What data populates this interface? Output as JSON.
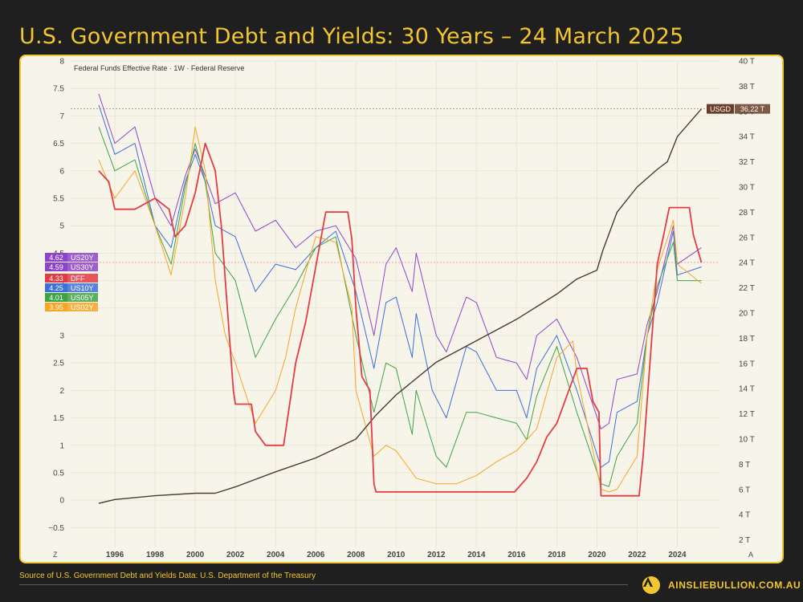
{
  "page": {
    "title": "U.S. Government Debt and Yields: 30 Years – 24 March 2025",
    "source": "Source of U.S. Government Debt and Yields Data: U.S. Department of the Treasury",
    "brand": "AINSLIEBULLION.COM.AU",
    "brand_color": "#f2c62f",
    "logo_icon": "a-logo-icon"
  },
  "chart_data": {
    "type": "line",
    "title": "Federal Funds Effective Rate · 1W · Federal Reserve",
    "x_ticks": [
      "1996",
      "1998",
      "2000",
      "2002",
      "2004",
      "2006",
      "2008",
      "2010",
      "2012",
      "2014",
      "2016",
      "2018",
      "2020",
      "2022",
      "2024"
    ],
    "x_tick_years": [
      1996,
      1998,
      2000,
      2002,
      2004,
      2006,
      2008,
      2010,
      2012,
      2014,
      2016,
      2018,
      2020,
      2022,
      2024
    ],
    "xlim": [
      1993.8,
      2026.1
    ],
    "x_corner_left": "Z",
    "x_corner_right": "A",
    "left_axis": {
      "ticks": [
        "8",
        "7.5",
        "7",
        "6.5",
        "6",
        "5.5",
        "5",
        "4.5",
        "4",
        "3.5",
        "3",
        "2.5",
        "2",
        "1.5",
        "1",
        "0.5",
        "0",
        "−0.5"
      ],
      "values": [
        8,
        7.5,
        7,
        6.5,
        6,
        5.5,
        5,
        4.5,
        4,
        3.5,
        3,
        2.5,
        2,
        1.5,
        1,
        0.5,
        0,
        -0.5
      ],
      "ylim": [
        -0.86,
        8.0
      ]
    },
    "right_axis": {
      "ticks": [
        "40 T",
        "38 T",
        "36 T",
        "34 T",
        "32 T",
        "30 T",
        "28 T",
        "26 T",
        "24 T",
        "22 T",
        "20 T",
        "18 T",
        "16 T",
        "14 T",
        "12 T",
        "10 T",
        "8 T",
        "6 T",
        "4 T",
        "2 T"
      ],
      "values": [
        40,
        38,
        36,
        34,
        32,
        30,
        28,
        26,
        24,
        22,
        20,
        18,
        16,
        14,
        12,
        10,
        8,
        6,
        4,
        2
      ],
      "ylim": [
        1.4,
        40.0
      ]
    },
    "legend_badges": [
      {
        "value": "4.62",
        "name": "US20Y",
        "color": "#8e44c9"
      },
      {
        "value": "4.59",
        "name": "US30Y",
        "color": "#8e44c9"
      },
      {
        "value": "4.33",
        "name": "DFF",
        "color": "#e23b44"
      },
      {
        "value": "4.25",
        "name": "US10Y",
        "color": "#3b6fd9"
      },
      {
        "value": "4.01",
        "name": "US05Y",
        "color": "#3da346"
      },
      {
        "value": "3.95",
        "name": "US02Y",
        "color": "#f5a623"
      }
    ],
    "debt_label": {
      "name": "USGD",
      "value": "36.22 T",
      "color": "#6a3d2a"
    },
    "series": [
      {
        "name": "USGD",
        "axis": "right",
        "color": "#4a3a33",
        "points": [
          [
            1995.2,
            4.9
          ],
          [
            1996,
            5.2
          ],
          [
            1998,
            5.5
          ],
          [
            2000,
            5.7
          ],
          [
            2001,
            5.7
          ],
          [
            2002,
            6.2
          ],
          [
            2004,
            7.4
          ],
          [
            2006,
            8.5
          ],
          [
            2008,
            10.0
          ],
          [
            2009,
            11.9
          ],
          [
            2010,
            13.5
          ],
          [
            2012,
            16.1
          ],
          [
            2014,
            17.8
          ],
          [
            2016,
            19.5
          ],
          [
            2018,
            21.5
          ],
          [
            2019,
            22.7
          ],
          [
            2020,
            23.4
          ],
          [
            2020.3,
            25.0
          ],
          [
            2021,
            28.0
          ],
          [
            2022,
            30.0
          ],
          [
            2023,
            31.4
          ],
          [
            2023.5,
            32.0
          ],
          [
            2024,
            34.0
          ],
          [
            2025.2,
            36.2
          ]
        ]
      },
      {
        "name": "DFF",
        "axis": "left",
        "color": "#e23b44",
        "points": [
          [
            1995.2,
            6.0
          ],
          [
            1995.7,
            5.8
          ],
          [
            1996,
            5.3
          ],
          [
            1997,
            5.3
          ],
          [
            1998,
            5.5
          ],
          [
            1998.7,
            5.3
          ],
          [
            1999,
            4.8
          ],
          [
            1999.5,
            5.0
          ],
          [
            2000,
            5.6
          ],
          [
            2000.5,
            6.5
          ],
          [
            2001,
            6.0
          ],
          [
            2001.3,
            5.0
          ],
          [
            2001.6,
            3.5
          ],
          [
            2001.9,
            2.0
          ],
          [
            2002,
            1.75
          ],
          [
            2002.8,
            1.75
          ],
          [
            2003,
            1.25
          ],
          [
            2003.5,
            1.0
          ],
          [
            2004.4,
            1.0
          ],
          [
            2004.6,
            1.5
          ],
          [
            2005,
            2.5
          ],
          [
            2005.5,
            3.25
          ],
          [
            2006,
            4.25
          ],
          [
            2006.5,
            5.25
          ],
          [
            2007.6,
            5.25
          ],
          [
            2007.8,
            4.75
          ],
          [
            2008,
            3.5
          ],
          [
            2008.3,
            2.25
          ],
          [
            2008.7,
            2.0
          ],
          [
            2008.9,
            0.3
          ],
          [
            2009,
            0.15
          ],
          [
            2015.9,
            0.15
          ],
          [
            2016.5,
            0.4
          ],
          [
            2017,
            0.7
          ],
          [
            2017.5,
            1.15
          ],
          [
            2018,
            1.4
          ],
          [
            2018.5,
            1.9
          ],
          [
            2019,
            2.4
          ],
          [
            2019.5,
            2.4
          ],
          [
            2019.8,
            1.8
          ],
          [
            2020.1,
            1.6
          ],
          [
            2020.2,
            0.08
          ],
          [
            2022.1,
            0.08
          ],
          [
            2022.3,
            0.8
          ],
          [
            2022.6,
            2.3
          ],
          [
            2022.9,
            3.8
          ],
          [
            2023,
            4.3
          ],
          [
            2023.3,
            4.8
          ],
          [
            2023.6,
            5.33
          ],
          [
            2024.6,
            5.33
          ],
          [
            2024.8,
            4.83
          ],
          [
            2025.2,
            4.33
          ]
        ]
      },
      {
        "name": "US30Y",
        "axis": "left",
        "color": "#8e44c9",
        "points": [
          [
            1995.2,
            7.4
          ],
          [
            1996,
            6.5
          ],
          [
            1997,
            6.8
          ],
          [
            1998,
            5.5
          ],
          [
            1998.8,
            5.0
          ],
          [
            1999.5,
            5.9
          ],
          [
            2000,
            6.4
          ],
          [
            2000.5,
            5.9
          ],
          [
            2001,
            5.4
          ],
          [
            2002,
            5.6
          ],
          [
            2003,
            4.9
          ],
          [
            2004,
            5.1
          ],
          [
            2005,
            4.6
          ],
          [
            2006,
            4.9
          ],
          [
            2007,
            5.0
          ],
          [
            2008,
            4.4
          ],
          [
            2008.9,
            3.0
          ],
          [
            2009.5,
            4.3
          ],
          [
            2010,
            4.6
          ],
          [
            2010.8,
            3.8
          ],
          [
            2011,
            4.5
          ],
          [
            2012,
            3.0
          ],
          [
            2012.5,
            2.7
          ],
          [
            2013.5,
            3.7
          ],
          [
            2014,
            3.6
          ],
          [
            2015,
            2.6
          ],
          [
            2016,
            2.5
          ],
          [
            2016.5,
            2.2
          ],
          [
            2017,
            3.0
          ],
          [
            2018,
            3.3
          ],
          [
            2019,
            2.6
          ],
          [
            2020.2,
            1.3
          ],
          [
            2020.6,
            1.4
          ],
          [
            2021,
            2.2
          ],
          [
            2022,
            2.3
          ],
          [
            2022.5,
            3.2
          ],
          [
            2023,
            3.8
          ],
          [
            2023.8,
            5.0
          ],
          [
            2024,
            4.3
          ],
          [
            2025.2,
            4.6
          ]
        ]
      },
      {
        "name": "US10Y",
        "axis": "left",
        "color": "#3b6fd9",
        "points": [
          [
            1995.2,
            7.2
          ],
          [
            1996,
            6.3
          ],
          [
            1997,
            6.5
          ],
          [
            1998,
            5.0
          ],
          [
            1998.8,
            4.6
          ],
          [
            1999.5,
            5.8
          ],
          [
            2000,
            6.3
          ],
          [
            2000.5,
            5.8
          ],
          [
            2001,
            5.0
          ],
          [
            2002,
            4.8
          ],
          [
            2003,
            3.8
          ],
          [
            2004,
            4.3
          ],
          [
            2005,
            4.2
          ],
          [
            2006,
            4.6
          ],
          [
            2007,
            4.9
          ],
          [
            2008,
            3.8
          ],
          [
            2008.9,
            2.4
          ],
          [
            2009.5,
            3.6
          ],
          [
            2010,
            3.7
          ],
          [
            2010.8,
            2.6
          ],
          [
            2011,
            3.4
          ],
          [
            2011.8,
            2.0
          ],
          [
            2012.5,
            1.5
          ],
          [
            2013.5,
            2.8
          ],
          [
            2014,
            2.7
          ],
          [
            2015,
            2.0
          ],
          [
            2016,
            2.0
          ],
          [
            2016.5,
            1.5
          ],
          [
            2017,
            2.4
          ],
          [
            2018,
            3.0
          ],
          [
            2019,
            2.0
          ],
          [
            2020.2,
            0.6
          ],
          [
            2020.6,
            0.7
          ],
          [
            2021,
            1.6
          ],
          [
            2022,
            1.8
          ],
          [
            2022.5,
            3.0
          ],
          [
            2023,
            3.6
          ],
          [
            2023.8,
            4.9
          ],
          [
            2024,
            4.1
          ],
          [
            2025.2,
            4.25
          ]
        ]
      },
      {
        "name": "US05Y",
        "axis": "left",
        "color": "#3da346",
        "points": [
          [
            1995.2,
            6.8
          ],
          [
            1996,
            6.0
          ],
          [
            1997,
            6.2
          ],
          [
            1998,
            5.0
          ],
          [
            1998.8,
            4.3
          ],
          [
            1999.5,
            5.7
          ],
          [
            2000,
            6.5
          ],
          [
            2000.5,
            5.8
          ],
          [
            2001,
            4.5
          ],
          [
            2002,
            4.0
          ],
          [
            2003,
            2.6
          ],
          [
            2004,
            3.3
          ],
          [
            2005,
            3.9
          ],
          [
            2006,
            4.6
          ],
          [
            2007,
            4.8
          ],
          [
            2008,
            3.0
          ],
          [
            2008.9,
            1.6
          ],
          [
            2009.5,
            2.5
          ],
          [
            2010,
            2.4
          ],
          [
            2010.8,
            1.2
          ],
          [
            2011,
            2.0
          ],
          [
            2012,
            0.8
          ],
          [
            2012.5,
            0.6
          ],
          [
            2013.5,
            1.6
          ],
          [
            2014,
            1.6
          ],
          [
            2015,
            1.5
          ],
          [
            2016,
            1.4
          ],
          [
            2016.5,
            1.1
          ],
          [
            2017,
            1.9
          ],
          [
            2018,
            2.8
          ],
          [
            2019,
            1.6
          ],
          [
            2020.2,
            0.3
          ],
          [
            2020.6,
            0.25
          ],
          [
            2021,
            0.8
          ],
          [
            2022,
            1.4
          ],
          [
            2022.5,
            3.0
          ],
          [
            2023,
            3.9
          ],
          [
            2023.8,
            4.7
          ],
          [
            2024,
            4.0
          ],
          [
            2025.2,
            4.0
          ]
        ]
      },
      {
        "name": "US02Y",
        "axis": "left",
        "color": "#f5a623",
        "points": [
          [
            1995.2,
            6.2
          ],
          [
            1996,
            5.5
          ],
          [
            1997,
            6.0
          ],
          [
            1998,
            5.0
          ],
          [
            1998.8,
            4.1
          ],
          [
            1999.5,
            5.5
          ],
          [
            2000,
            6.8
          ],
          [
            2000.5,
            6.0
          ],
          [
            2001,
            4.0
          ],
          [
            2001.5,
            3.0
          ],
          [
            2002,
            2.5
          ],
          [
            2003,
            1.4
          ],
          [
            2004,
            2.0
          ],
          [
            2004.5,
            2.6
          ],
          [
            2005,
            3.5
          ],
          [
            2006,
            4.8
          ],
          [
            2007,
            4.7
          ],
          [
            2007.8,
            3.5
          ],
          [
            2008,
            2.0
          ],
          [
            2008.9,
            0.8
          ],
          [
            2009.5,
            1.0
          ],
          [
            2010,
            0.9
          ],
          [
            2011,
            0.4
          ],
          [
            2012,
            0.3
          ],
          [
            2013,
            0.3
          ],
          [
            2014,
            0.45
          ],
          [
            2015,
            0.7
          ],
          [
            2016,
            0.9
          ],
          [
            2017,
            1.3
          ],
          [
            2018,
            2.6
          ],
          [
            2018.8,
            2.9
          ],
          [
            2019,
            2.3
          ],
          [
            2020.2,
            0.2
          ],
          [
            2020.6,
            0.15
          ],
          [
            2021,
            0.2
          ],
          [
            2022,
            0.8
          ],
          [
            2022.5,
            3.0
          ],
          [
            2023,
            4.2
          ],
          [
            2023.8,
            5.1
          ],
          [
            2024,
            4.3
          ],
          [
            2025.2,
            3.95
          ]
        ]
      }
    ]
  }
}
